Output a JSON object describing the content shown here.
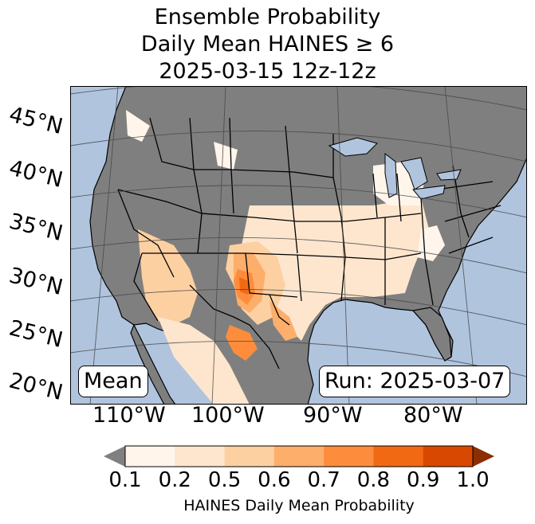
{
  "title": {
    "line1": "Ensemble Probability",
    "line2": "Daily Mean HAINES ≥ 6",
    "line3": "2025-03-15 12z-12z"
  },
  "map": {
    "latitude_labels": [
      "45°N",
      "40°N",
      "35°N",
      "30°N",
      "25°N",
      "20°N"
    ],
    "longitude_labels": [
      "110°W",
      "100°W",
      "90°W",
      "80°W"
    ],
    "mean_box": "Mean",
    "run_box": "Run: 2025-03-07",
    "colors": {
      "ocean": "#b0c4de",
      "land_no_data": "#808080",
      "lakes": "#b0c4de"
    }
  },
  "colorbar": {
    "label": "HAINES Daily Mean Probability",
    "ticks": [
      "0.1",
      "0.2",
      "0.5",
      "0.6",
      "0.7",
      "0.8",
      "0.9",
      "1.0"
    ],
    "colors": [
      "#fff5eb",
      "#fee6ce",
      "#fdd0a2",
      "#fdae6b",
      "#fd8d3c",
      "#f16913",
      "#d94801"
    ],
    "under_color": "#808080",
    "over_color": "#8c2d04"
  }
}
